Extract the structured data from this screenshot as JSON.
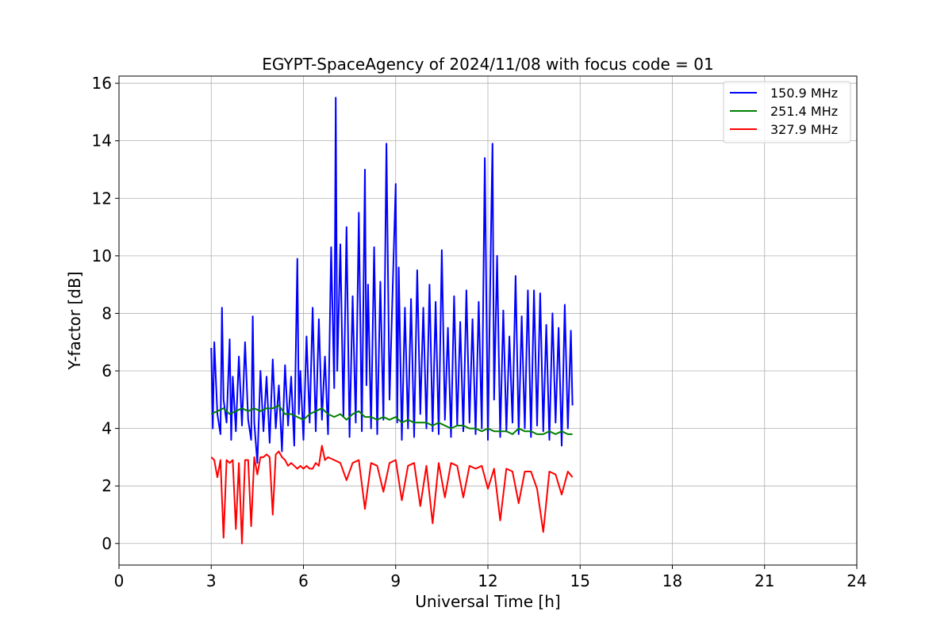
{
  "chart_data": {
    "type": "line",
    "title": "EGYPT-SpaceAgency of 2024/11/08 with focus code = 01",
    "xlabel": "Universal Time [h]",
    "ylabel": "Y-factor [dB]",
    "xlim": [
      0,
      24
    ],
    "ylim": [
      -0.75,
      16.25
    ],
    "xticks": [
      0,
      3,
      6,
      9,
      12,
      15,
      18,
      21,
      24
    ],
    "yticks": [
      0,
      2,
      4,
      6,
      8,
      10,
      12,
      14,
      16
    ],
    "grid": true,
    "legend_position": "top-right",
    "series": [
      {
        "name": "150.9 MHz",
        "color": "#0000ff",
        "x": [
          3.0,
          3.05,
          3.1,
          3.2,
          3.3,
          3.35,
          3.4,
          3.5,
          3.6,
          3.65,
          3.7,
          3.8,
          3.9,
          4.0,
          4.1,
          4.2,
          4.3,
          4.35,
          4.4,
          4.5,
          4.6,
          4.7,
          4.8,
          4.9,
          5.0,
          5.1,
          5.2,
          5.3,
          5.4,
          5.5,
          5.6,
          5.7,
          5.8,
          5.85,
          5.9,
          6.0,
          6.1,
          6.2,
          6.3,
          6.4,
          6.5,
          6.6,
          6.7,
          6.8,
          6.9,
          7.0,
          7.05,
          7.1,
          7.2,
          7.3,
          7.4,
          7.5,
          7.6,
          7.7,
          7.8,
          7.9,
          8.0,
          8.05,
          8.1,
          8.2,
          8.3,
          8.4,
          8.5,
          8.6,
          8.7,
          8.8,
          8.9,
          9.0,
          9.05,
          9.1,
          9.2,
          9.3,
          9.4,
          9.5,
          9.6,
          9.7,
          9.8,
          9.9,
          10.0,
          10.1,
          10.2,
          10.3,
          10.4,
          10.5,
          10.6,
          10.7,
          10.8,
          10.9,
          11.0,
          11.1,
          11.2,
          11.3,
          11.4,
          11.5,
          11.6,
          11.7,
          11.8,
          11.9,
          12.0,
          12.1,
          12.15,
          12.2,
          12.3,
          12.4,
          12.5,
          12.6,
          12.7,
          12.8,
          12.9,
          13.0,
          13.1,
          13.2,
          13.3,
          13.4,
          13.5,
          13.6,
          13.7,
          13.8,
          13.9,
          14.0,
          14.1,
          14.2,
          14.3,
          14.4,
          14.5,
          14.6,
          14.7,
          14.75
        ],
        "y": [
          6.8,
          4.0,
          7.0,
          4.5,
          3.8,
          8.2,
          5.0,
          4.2,
          7.1,
          3.6,
          5.8,
          3.9,
          6.5,
          4.1,
          7.0,
          4.3,
          3.6,
          7.9,
          4.2,
          2.8,
          6.0,
          3.9,
          5.8,
          3.5,
          6.4,
          4.0,
          5.5,
          3.2,
          6.2,
          4.1,
          5.8,
          3.4,
          9.9,
          4.5,
          6.0,
          3.6,
          7.2,
          4.2,
          8.2,
          3.9,
          7.8,
          4.3,
          6.5,
          3.8,
          10.3,
          5.4,
          15.5,
          6.0,
          10.4,
          4.4,
          11.0,
          3.7,
          8.6,
          4.2,
          11.5,
          3.9,
          13.0,
          5.5,
          9.0,
          4.0,
          10.3,
          3.8,
          9.1,
          4.3,
          13.9,
          5.0,
          8.8,
          12.5,
          4.2,
          9.6,
          3.6,
          8.2,
          4.0,
          8.5,
          3.7,
          9.5,
          4.5,
          8.2,
          4.0,
          9.0,
          3.9,
          8.4,
          3.8,
          10.2,
          4.3,
          7.5,
          3.7,
          8.6,
          4.1,
          7.7,
          3.9,
          8.8,
          4.2,
          7.8,
          3.8,
          8.4,
          4.0,
          13.4,
          3.6,
          10.8,
          13.9,
          5.0,
          10.0,
          3.7,
          8.1,
          3.9,
          7.2,
          4.2,
          9.3,
          3.8,
          7.9,
          4.0,
          8.8,
          3.7,
          8.8,
          4.1,
          8.7,
          3.9,
          7.6,
          3.6,
          8.0,
          4.2,
          7.5,
          3.4,
          8.3,
          4.0,
          7.4,
          4.8
        ]
      },
      {
        "name": "251.4 MHz",
        "color": "#008000",
        "x": [
          3.0,
          3.2,
          3.4,
          3.6,
          3.8,
          4.0,
          4.2,
          4.4,
          4.6,
          4.8,
          5.0,
          5.2,
          5.4,
          5.6,
          5.8,
          6.0,
          6.2,
          6.4,
          6.6,
          6.8,
          7.0,
          7.2,
          7.4,
          7.6,
          7.8,
          8.0,
          8.2,
          8.4,
          8.6,
          8.8,
          9.0,
          9.2,
          9.4,
          9.6,
          9.8,
          10.0,
          10.2,
          10.4,
          10.6,
          10.8,
          11.0,
          11.2,
          11.4,
          11.6,
          11.8,
          12.0,
          12.2,
          12.4,
          12.6,
          12.8,
          13.0,
          13.2,
          13.4,
          13.6,
          13.8,
          14.0,
          14.2,
          14.4,
          14.6,
          14.75
        ],
        "y": [
          4.5,
          4.6,
          4.7,
          4.5,
          4.6,
          4.7,
          4.6,
          4.7,
          4.6,
          4.7,
          4.7,
          4.8,
          4.5,
          4.5,
          4.4,
          4.3,
          4.5,
          4.6,
          4.7,
          4.5,
          4.4,
          4.5,
          4.3,
          4.5,
          4.6,
          4.4,
          4.4,
          4.3,
          4.4,
          4.3,
          4.4,
          4.2,
          4.3,
          4.2,
          4.2,
          4.2,
          4.1,
          4.2,
          4.1,
          4.0,
          4.1,
          4.1,
          4.0,
          4.0,
          3.9,
          4.0,
          3.9,
          3.9,
          3.9,
          3.8,
          4.0,
          3.9,
          3.9,
          3.8,
          3.8,
          3.9,
          3.8,
          3.9,
          3.8,
          3.8
        ]
      },
      {
        "name": "327.9 MHz",
        "color": "#ff0000",
        "x": [
          3.0,
          3.1,
          3.2,
          3.3,
          3.4,
          3.5,
          3.6,
          3.7,
          3.8,
          3.9,
          4.0,
          4.1,
          4.2,
          4.3,
          4.4,
          4.5,
          4.6,
          4.7,
          4.8,
          4.9,
          5.0,
          5.1,
          5.2,
          5.3,
          5.4,
          5.5,
          5.6,
          5.7,
          5.8,
          5.9,
          6.0,
          6.1,
          6.2,
          6.3,
          6.4,
          6.5,
          6.6,
          6.7,
          6.8,
          7.0,
          7.2,
          7.4,
          7.6,
          7.8,
          8.0,
          8.2,
          8.4,
          8.6,
          8.8,
          9.0,
          9.2,
          9.4,
          9.6,
          9.8,
          10.0,
          10.2,
          10.4,
          10.6,
          10.8,
          11.0,
          11.2,
          11.4,
          11.6,
          11.8,
          12.0,
          12.2,
          12.4,
          12.6,
          12.8,
          13.0,
          13.2,
          13.4,
          13.6,
          13.8,
          14.0,
          14.2,
          14.4,
          14.6,
          14.75
        ],
        "y": [
          3.0,
          2.9,
          2.3,
          2.9,
          0.2,
          2.9,
          2.8,
          2.9,
          0.5,
          2.8,
          0.0,
          2.9,
          2.9,
          0.6,
          3.0,
          2.4,
          3.0,
          3.0,
          3.1,
          3.0,
          1.0,
          3.1,
          3.2,
          3.0,
          2.9,
          2.7,
          2.8,
          2.7,
          2.6,
          2.7,
          2.6,
          2.7,
          2.6,
          2.6,
          2.8,
          2.7,
          3.4,
          2.9,
          3.0,
          2.9,
          2.8,
          2.2,
          2.8,
          2.9,
          1.2,
          2.8,
          2.7,
          1.8,
          2.8,
          2.9,
          1.5,
          2.7,
          2.8,
          1.3,
          2.7,
          0.7,
          2.8,
          1.6,
          2.8,
          2.7,
          1.6,
          2.7,
          2.6,
          2.7,
          1.9,
          2.6,
          0.8,
          2.6,
          2.5,
          1.4,
          2.5,
          2.5,
          1.9,
          0.4,
          2.5,
          2.4,
          1.7,
          2.5,
          2.3
        ]
      }
    ]
  }
}
